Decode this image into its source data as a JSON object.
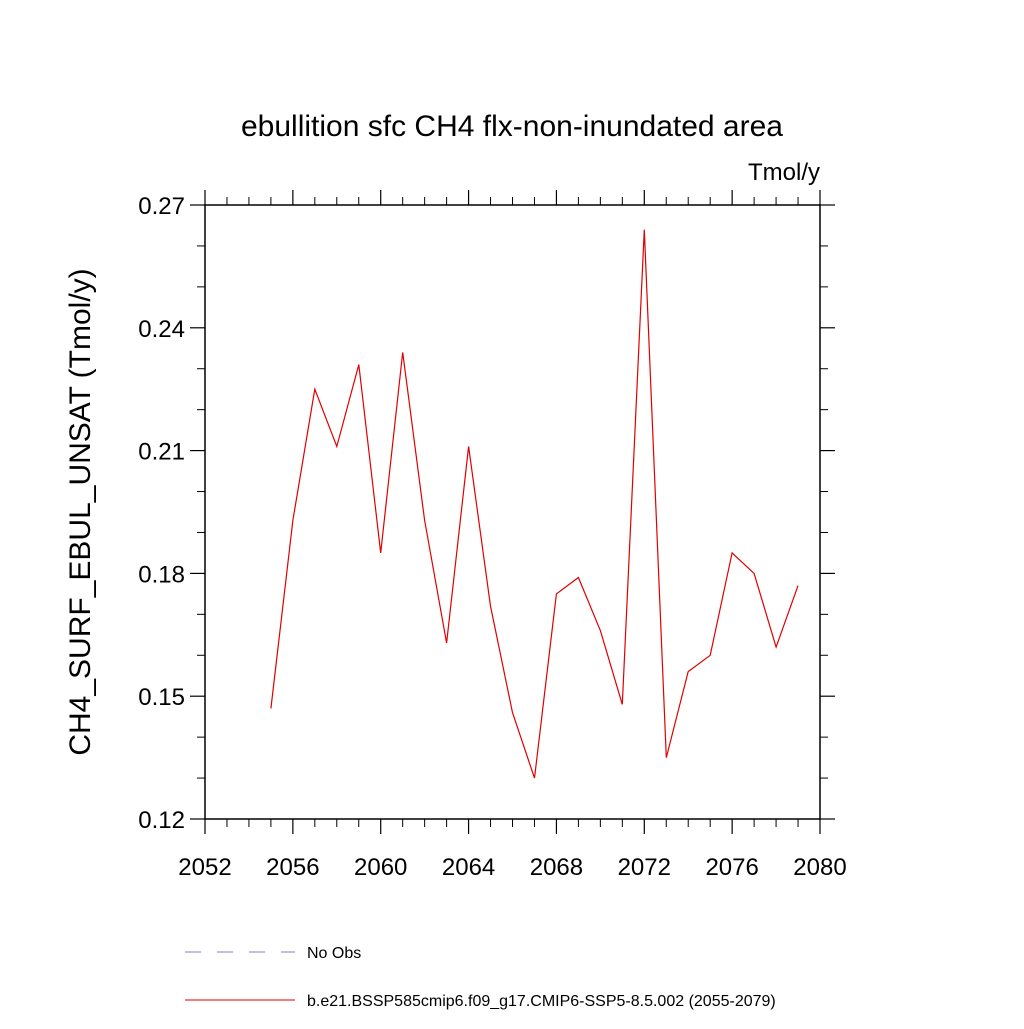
{
  "chart_data": {
    "type": "line",
    "title": "ebullition sfc CH4 flx-non-inundated area",
    "units_label": "Tmol/y",
    "ylabel": "CH4_SURF_EBUL_UNSAT  (Tmol/y)",
    "xlabel": "",
    "xlim": [
      2052,
      2080
    ],
    "ylim": [
      0.12,
      0.27
    ],
    "x_ticks": [
      2052,
      2056,
      2060,
      2064,
      2068,
      2072,
      2076,
      2080
    ],
    "x_tick_labels": [
      "2052",
      "2056",
      "2060",
      "2064",
      "2068",
      "2072",
      "2076",
      "2080"
    ],
    "y_ticks": [
      0.12,
      0.15,
      0.18,
      0.21,
      0.24,
      0.27
    ],
    "y_tick_labels": [
      "0.12",
      "0.15",
      "0.18",
      "0.21",
      "0.24",
      "0.27"
    ],
    "grid": false,
    "legend_placement": "bottom",
    "legend": [
      {
        "label": "No Obs",
        "style": "dashed",
        "color": "#8080c0"
      },
      {
        "label": "b.e21.BSSP585cmip6.f09_g17.CMIP6-SSP5-8.5.002 (2055-2079)",
        "style": "solid",
        "color": "#e00000"
      }
    ],
    "series": [
      {
        "name": "b.e21.BSSP585cmip6.f09_g17.CMIP6-SSP5-8.5.002 (2055-2079)",
        "color": "#e00000",
        "x": [
          2055,
          2056,
          2057,
          2058,
          2059,
          2060,
          2061,
          2062,
          2063,
          2064,
          2065,
          2066,
          2067,
          2068,
          2069,
          2070,
          2071,
          2072,
          2073,
          2074,
          2075,
          2076,
          2077,
          2078,
          2079
        ],
        "y": [
          0.147,
          0.193,
          0.225,
          0.211,
          0.231,
          0.185,
          0.234,
          0.193,
          0.163,
          0.211,
          0.172,
          0.146,
          0.13,
          0.175,
          0.179,
          0.166,
          0.148,
          0.264,
          0.135,
          0.156,
          0.16,
          0.185,
          0.18,
          0.162,
          0.177
        ]
      }
    ]
  }
}
